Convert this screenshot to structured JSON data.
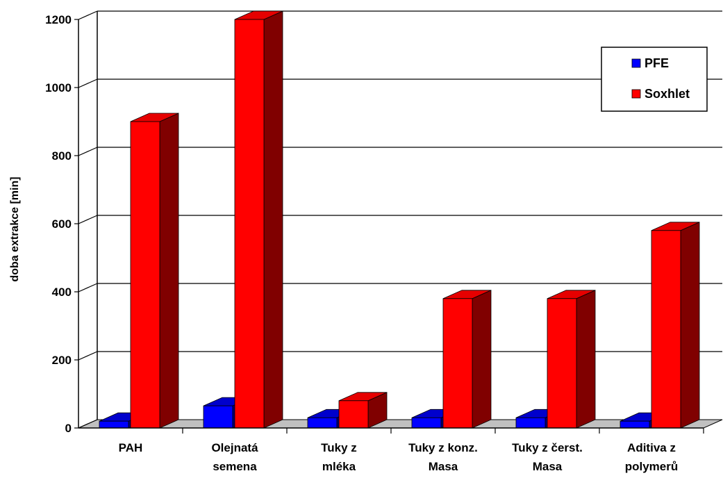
{
  "chart_data": {
    "type": "bar",
    "style": "3d-clustered-column",
    "title": "",
    "xlabel": "",
    "ylabel": "doba extrakce [min]",
    "ylim": [
      0,
      1200
    ],
    "yticks": [
      "0",
      "200",
      "400",
      "600",
      "800",
      "1000",
      "1200"
    ],
    "ytick_values": [
      0,
      200,
      400,
      600,
      800,
      1000,
      1200
    ],
    "grid": "horizontal",
    "legend_position": "top-right",
    "categories": [
      [
        "PAH"
      ],
      [
        "Olejnatá",
        "semena"
      ],
      [
        "Tuky z",
        "mléka"
      ],
      [
        "Tuky z konz.",
        "Masa"
      ],
      [
        "Tuky z čerst.",
        "Masa"
      ],
      [
        "Aditiva z",
        "polymerů"
      ]
    ],
    "series": [
      {
        "name": "PFE",
        "values": [
          20,
          65,
          30,
          30,
          30,
          20
        ],
        "color_front": "#0000ff",
        "color_top": "#0000cc",
        "color_side": "#00007a"
      },
      {
        "name": "Soxhlet",
        "values": [
          900,
          1200,
          80,
          380,
          380,
          580
        ],
        "color_front": "#ff0000",
        "color_top": "#e60000",
        "color_side": "#800000"
      }
    ],
    "colors": {
      "floor": "#c0c0c0",
      "grid": "#000000"
    }
  }
}
